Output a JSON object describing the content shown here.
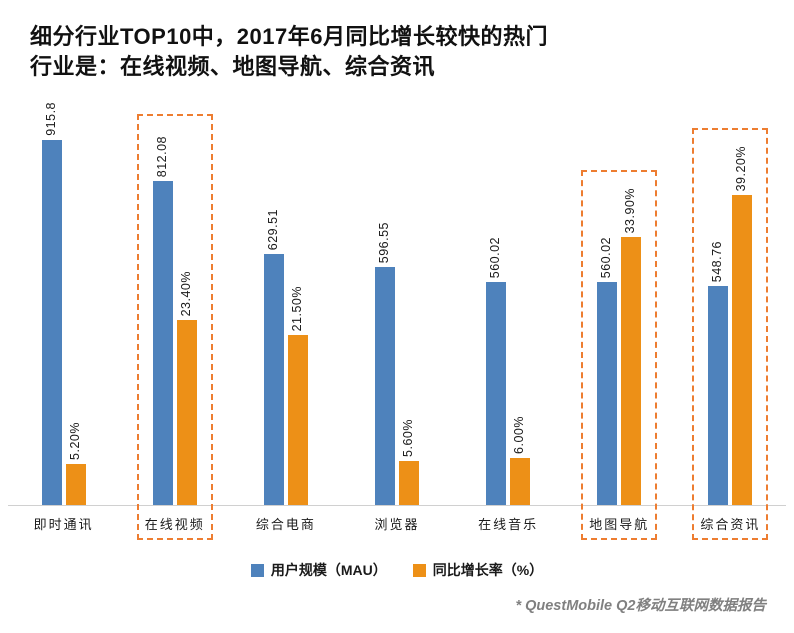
{
  "title": {
    "line1": "细分行业TOP10中，2017年6月同比增长较快的热门",
    "line2": "行业是：在线视频、地图导航、综合资讯"
  },
  "chart_data": {
    "type": "bar",
    "categories": [
      "即时通讯",
      "在线视频",
      "综合电商",
      "浏览器",
      "在线音乐",
      "地图导航",
      "综合资讯"
    ],
    "series": [
      {
        "name": "用户规模（MAU）",
        "axis": "left",
        "color": "#4e82bc",
        "values": [
          915.8,
          812.08,
          629.51,
          596.55,
          560.02,
          560.02,
          548.76
        ],
        "labels": [
          "915.8",
          "812.08",
          "629.51",
          "596.55",
          "560.02",
          "560.02",
          "548.76"
        ]
      },
      {
        "name": "同比增长率（%）",
        "axis": "right",
        "color": "#ed9017",
        "values": [
          5.2,
          23.4,
          21.5,
          5.6,
          6.0,
          33.9,
          39.2
        ],
        "labels": [
          "5.20%",
          "23.40%",
          "21.50%",
          "5.60%",
          "6.00%",
          "33.90%",
          "39.20%"
        ]
      }
    ],
    "highlighted_categories": [
      "在线视频",
      "地图导航",
      "综合资讯"
    ],
    "grid": false,
    "legend_position": "bottom"
  },
  "legend": {
    "series1": "用户规模（MAU）",
    "series2": "同比增长率（%）"
  },
  "footnote": "* QuestMobile Q2移动互联网数据报告",
  "colors": {
    "bar_blue": "#4e82bc",
    "bar_orange": "#ed9017",
    "highlight_box": "#ed7d31",
    "axis_line": "#d0d0d0",
    "footnote_gray": "#808080"
  }
}
